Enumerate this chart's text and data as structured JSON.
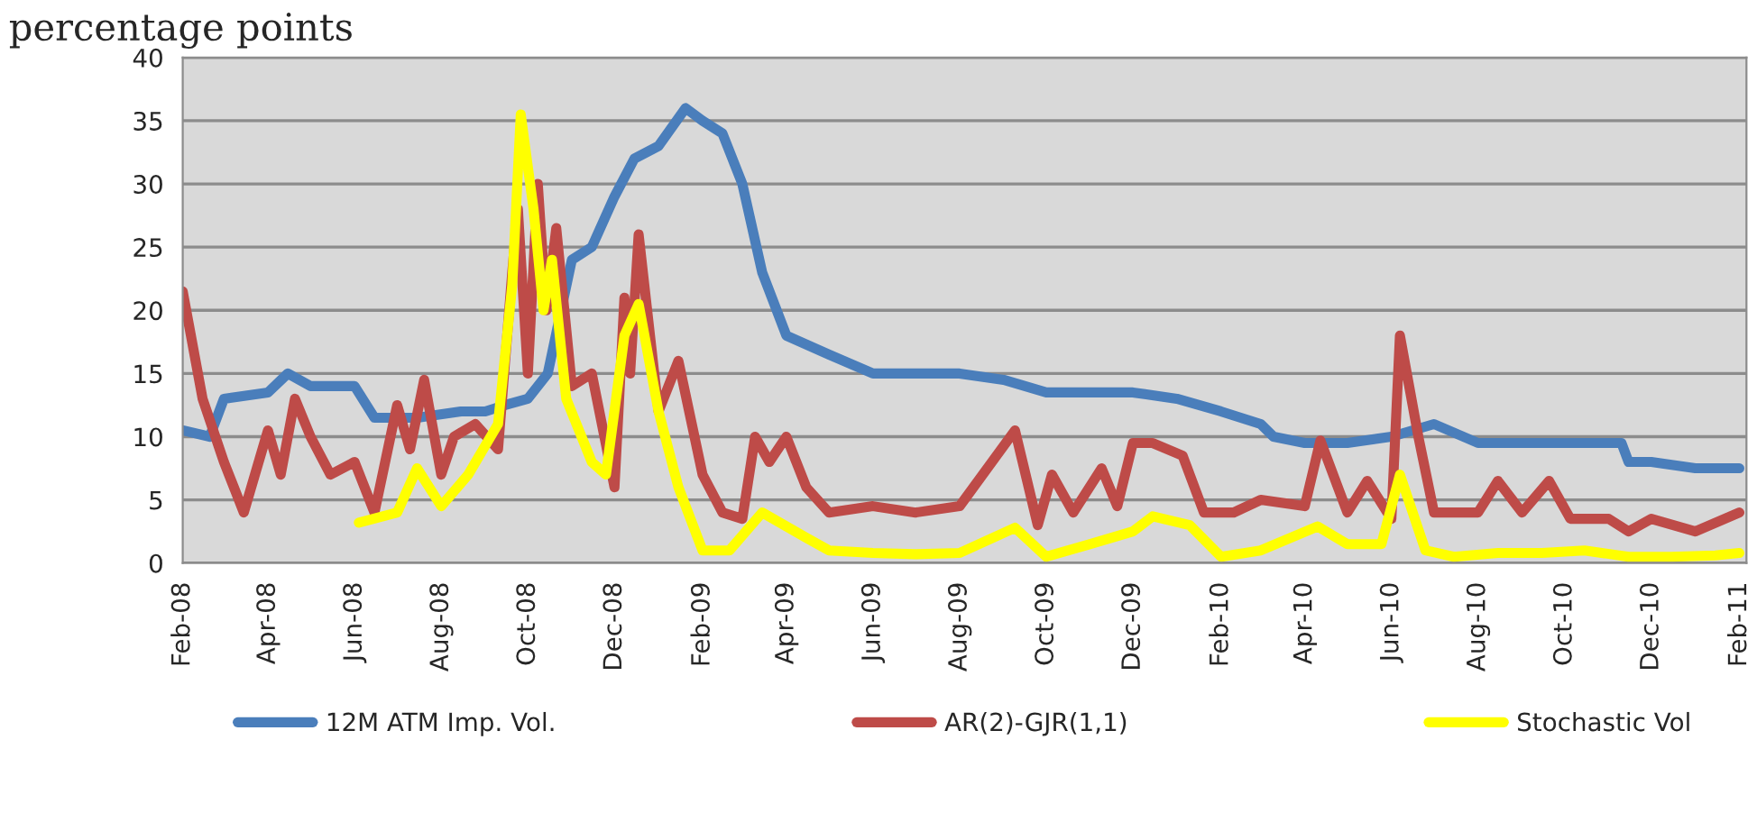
{
  "chart_data": {
    "type": "line",
    "title": "percentage points",
    "xlim": [
      "2008-02-01",
      "2011-02-06"
    ],
    "xticks": [
      {
        "value": "2008-02-01",
        "label": "Feb-08"
      },
      {
        "value": "2008-04-01",
        "label": "Apr-08"
      },
      {
        "value": "2008-06-01",
        "label": "Jun-08"
      },
      {
        "value": "2008-08-01",
        "label": "Aug-08"
      },
      {
        "value": "2008-10-01",
        "label": "Oct-08"
      },
      {
        "value": "2008-12-01",
        "label": "Dec-08"
      },
      {
        "value": "2009-02-01",
        "label": "Feb-09"
      },
      {
        "value": "2009-04-01",
        "label": "Apr-09"
      },
      {
        "value": "2009-06-01",
        "label": "Jun-09"
      },
      {
        "value": "2009-08-01",
        "label": "Aug-09"
      },
      {
        "value": "2009-10-01",
        "label": "Oct-09"
      },
      {
        "value": "2009-12-01",
        "label": "Dec-09"
      },
      {
        "value": "2010-02-01",
        "label": "Feb-10"
      },
      {
        "value": "2010-04-01",
        "label": "Apr-10"
      },
      {
        "value": "2010-06-01",
        "label": "Jun-10"
      },
      {
        "value": "2010-08-01",
        "label": "Aug-10"
      },
      {
        "value": "2010-10-01",
        "label": "Oct-10"
      },
      {
        "value": "2010-12-01",
        "label": "Dec-10"
      },
      {
        "value": "2011-02-01",
        "label": "Feb-11"
      }
    ],
    "ylim": [
      0,
      40
    ],
    "yticks": [
      0,
      5,
      10,
      15,
      20,
      25,
      30,
      35,
      40
    ],
    "grid": "y",
    "legend": "bottom",
    "line_style": "solid",
    "marker": "none",
    "series": [
      {
        "name": "12M ATM Imp. Vol.",
        "color": "#4a7ebb",
        "x": [
          "2008-02-01",
          "2008-02-20",
          "2008-03-01",
          "2008-04-01",
          "2008-04-15",
          "2008-05-01",
          "2008-06-01",
          "2008-06-15",
          "2008-07-15",
          "2008-08-15",
          "2008-09-01",
          "2008-09-15",
          "2008-10-01",
          "2008-10-15",
          "2008-11-01",
          "2008-11-15",
          "2008-12-01",
          "2008-12-15",
          "2009-01-01",
          "2009-01-20",
          "2009-02-01",
          "2009-02-15",
          "2009-03-01",
          "2009-03-15",
          "2009-04-01",
          "2009-05-01",
          "2009-06-01",
          "2009-07-01",
          "2009-08-01",
          "2009-09-01",
          "2009-10-01",
          "2009-11-01",
          "2009-12-01",
          "2010-01-01",
          "2010-02-01",
          "2010-03-01",
          "2010-03-10",
          "2010-04-01",
          "2010-05-01",
          "2010-06-01",
          "2010-07-01",
          "2010-08-01",
          "2010-09-01",
          "2010-10-01",
          "2010-11-10",
          "2010-11-15",
          "2010-12-01",
          "2011-01-01",
          "2011-02-01"
        ],
        "values": [
          10.5,
          10,
          13,
          13.5,
          15,
          14,
          14,
          11.5,
          11.5,
          12,
          12,
          12.5,
          13,
          15,
          24,
          25,
          29,
          32,
          33,
          36,
          35,
          34,
          30,
          23,
          18,
          16.5,
          15,
          15,
          15,
          14.5,
          13.5,
          13.5,
          13.5,
          13,
          12,
          11,
          10,
          9.5,
          9.5,
          10,
          11,
          9.5,
          9.5,
          9.5,
          9.5,
          8,
          8,
          7.5,
          7.5
        ]
      },
      {
        "name": "AR(2)-GJR(1,1)",
        "color": "#be4b48",
        "x": [
          "2008-02-01",
          "2008-02-15",
          "2008-03-01",
          "2008-03-15",
          "2008-04-01",
          "2008-04-10",
          "2008-04-20",
          "2008-05-01",
          "2008-05-15",
          "2008-06-01",
          "2008-06-15",
          "2008-07-01",
          "2008-07-10",
          "2008-07-20",
          "2008-08-01",
          "2008-08-10",
          "2008-08-25",
          "2008-09-10",
          "2008-09-20",
          "2008-09-24",
          "2008-10-01",
          "2008-10-08",
          "2008-10-14",
          "2008-10-21",
          "2008-11-01",
          "2008-11-15",
          "2008-12-01",
          "2008-12-08",
          "2008-12-12",
          "2008-12-18",
          "2009-01-01",
          "2009-01-15",
          "2009-02-01",
          "2009-02-15",
          "2009-03-01",
          "2009-03-10",
          "2009-03-20",
          "2009-04-01",
          "2009-04-15",
          "2009-05-01",
          "2009-06-01",
          "2009-07-01",
          "2009-08-01",
          "2009-09-09",
          "2009-09-25",
          "2009-10-05",
          "2009-10-20",
          "2009-11-09",
          "2009-11-20",
          "2009-12-01",
          "2009-12-15",
          "2010-01-05",
          "2010-01-20",
          "2010-02-10",
          "2010-03-01",
          "2010-04-01",
          "2010-04-12",
          "2010-05-01",
          "2010-05-15",
          "2010-06-01",
          "2010-06-07",
          "2010-06-20",
          "2010-07-01",
          "2010-08-01",
          "2010-08-15",
          "2010-09-01",
          "2010-09-20",
          "2010-10-05",
          "2010-11-01",
          "2010-11-15",
          "2010-12-01",
          "2011-01-01",
          "2011-02-01"
        ],
        "values": [
          21.5,
          13,
          8,
          4,
          10.5,
          7,
          13,
          10,
          7,
          8,
          4,
          12.5,
          9,
          14.5,
          7,
          10,
          11,
          9,
          23,
          28,
          15,
          30,
          20,
          26.5,
          14,
          15,
          6,
          21,
          15,
          26,
          12,
          16,
          7,
          4,
          3.5,
          10,
          8,
          10,
          6,
          4,
          4.5,
          4,
          4.5,
          10.5,
          3,
          7,
          4,
          7.5,
          4.5,
          9.5,
          9.5,
          8.5,
          4,
          4,
          5,
          4.5,
          9.7,
          4,
          6.5,
          3.5,
          18,
          10,
          4,
          4,
          6.5,
          4,
          6.5,
          3.5,
          3.5,
          2.5,
          3.5,
          2.5,
          4
        ]
      },
      {
        "name": "Stochastic Vol",
        "color": "#ffff00",
        "x": [
          "2008-06-04",
          "2008-07-01",
          "2008-07-15",
          "2008-08-01",
          "2008-08-20",
          "2008-09-10",
          "2008-09-20",
          "2008-09-26",
          "2008-10-05",
          "2008-10-12",
          "2008-10-18",
          "2008-10-28",
          "2008-11-15",
          "2008-11-25",
          "2008-12-08",
          "2008-12-18",
          "2009-01-01",
          "2009-01-15",
          "2009-02-01",
          "2009-02-20",
          "2009-03-15",
          "2009-04-15",
          "2009-05-01",
          "2009-06-01",
          "2009-07-01",
          "2009-08-01",
          "2009-09-09",
          "2009-10-01",
          "2009-11-01",
          "2009-12-01",
          "2009-12-15",
          "2010-01-10",
          "2010-02-01",
          "2010-03-01",
          "2010-04-10",
          "2010-05-01",
          "2010-05-25",
          "2010-06-07",
          "2010-06-25",
          "2010-07-15",
          "2010-08-15",
          "2010-09-15",
          "2010-10-15",
          "2010-11-15",
          "2010-12-15",
          "2011-01-15",
          "2011-02-01"
        ],
        "values": [
          3.2,
          4,
          7.5,
          4.5,
          7,
          11,
          22,
          35.5,
          28,
          20,
          24,
          13,
          8,
          7,
          18,
          20.5,
          12,
          6,
          1,
          1,
          4,
          2,
          1,
          0.8,
          0.7,
          0.8,
          2.8,
          0.5,
          1.5,
          2.5,
          3.7,
          3,
          0.5,
          1,
          2.9,
          1.5,
          1.5,
          7,
          1,
          0.5,
          0.8,
          0.8,
          1,
          0.5,
          0.5,
          0.6,
          0.8
        ]
      }
    ]
  }
}
